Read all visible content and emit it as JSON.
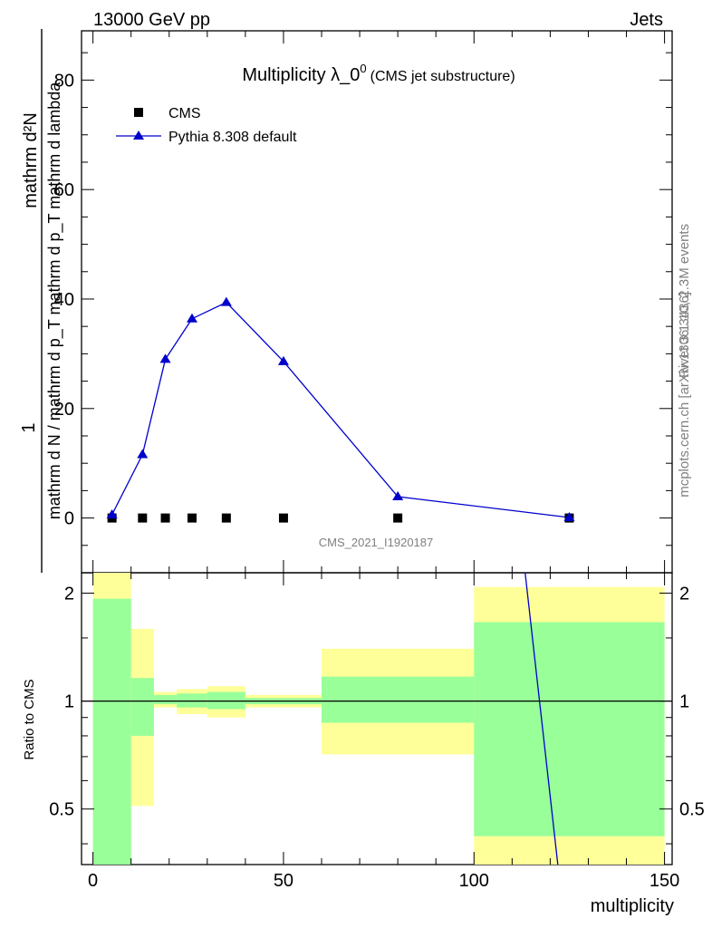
{
  "header": {
    "left": "13000 GeV pp",
    "right": "Jets"
  },
  "side_labels": {
    "rivet": "Rivet 3.1.10,  2.3M events",
    "mcplots": "mcplots.cern.ch [arXiv:1306.3436]"
  },
  "watermark": "CMS_2021_I1920187",
  "colors": {
    "data": "#000000",
    "mc": "#0000cc",
    "band_green": "#99ff99",
    "band_yellow": "#ffff99"
  },
  "chart_data": [
    {
      "type": "scatter",
      "title": "Multiplicity λ_0",
      "title_sup": "0",
      "subtitle": "(CMS jet substructure)",
      "ylabel_numerator": "mathrm d²N",
      "ylabel_numerator_top": "1",
      "ylabel_denominator": "mathrm d N / mathrm d p_T mathrm d p_T mathrm d lambda",
      "xlim": [
        -3,
        152
      ],
      "ylim": [
        -10,
        89
      ],
      "yticks": [
        0,
        20,
        40,
        60,
        80
      ],
      "legend_position": "top-left",
      "series": [
        {
          "name": "CMS",
          "marker": "square",
          "x": [
            5,
            13,
            19,
            26,
            35,
            50,
            80,
            125
          ],
          "y": [
            0,
            0,
            0,
            0,
            0,
            0,
            0,
            0
          ]
        },
        {
          "name": "Pythia 8.308 default",
          "marker": "triangle",
          "x": [
            5,
            13,
            19,
            26,
            35,
            50,
            80,
            125
          ],
          "y": [
            0.6,
            11.6,
            29.0,
            36.4,
            39.4,
            28.6,
            3.9,
            0.1
          ]
        }
      ]
    },
    {
      "type": "line",
      "ylabel": "Ratio to CMS",
      "xlabel": "multiplicity",
      "xlim": [
        -3,
        152
      ],
      "ylim": [
        0.35,
        2.28
      ],
      "log_y": true,
      "yticks": [
        0.5,
        1,
        2
      ],
      "xticks": [
        0,
        50,
        100,
        150
      ],
      "bands": [
        {
          "x0": 0,
          "x1": 10,
          "green": [
            0.3,
            1.93
          ],
          "yellow": [
            0.25,
            2.7
          ]
        },
        {
          "x0": 10,
          "x1": 16,
          "green": [
            0.8,
            1.16
          ],
          "yellow": [
            0.51,
            1.59
          ]
        },
        {
          "x0": 16,
          "x1": 22,
          "green": [
            0.98,
            1.04
          ],
          "yellow": [
            0.96,
            1.06
          ]
        },
        {
          "x0": 22,
          "x1": 30,
          "green": [
            0.96,
            1.05
          ],
          "yellow": [
            0.92,
            1.08
          ]
        },
        {
          "x0": 30,
          "x1": 40,
          "green": [
            0.95,
            1.06
          ],
          "yellow": [
            0.9,
            1.1
          ]
        },
        {
          "x0": 40,
          "x1": 60,
          "green": [
            0.98,
            1.02
          ],
          "yellow": [
            0.96,
            1.04
          ]
        },
        {
          "x0": 60,
          "x1": 100,
          "green": [
            0.87,
            1.17
          ],
          "yellow": [
            0.71,
            1.4
          ]
        },
        {
          "x0": 100,
          "x1": 150,
          "green": [
            0.42,
            1.66
          ],
          "yellow": [
            0.3,
            2.08
          ]
        }
      ],
      "ratio_line": {
        "x": [
          113,
          122
        ],
        "y": [
          2.5,
          0.35
        ]
      },
      "reference": 1
    }
  ]
}
